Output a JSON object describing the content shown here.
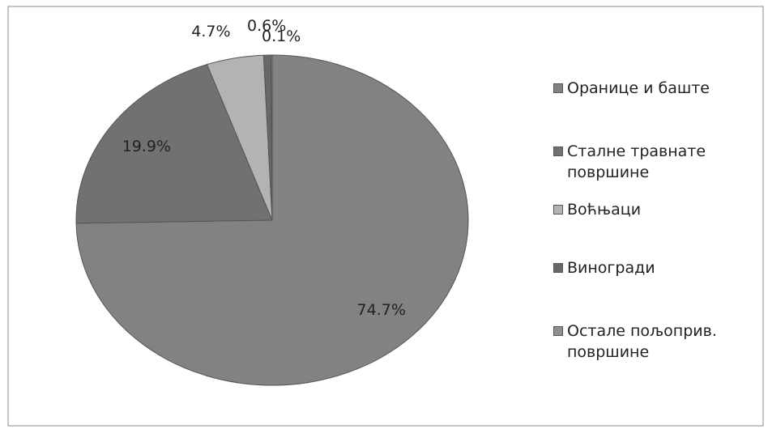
{
  "chart_data": {
    "type": "pie",
    "categories": [
      "Оранице и баште",
      "Сталне травнате површине",
      "Воћњаци",
      "Виногради",
      "Остале пољоприв. површине"
    ],
    "values": [
      74.7,
      19.9,
      4.7,
      0.6,
      0.1
    ],
    "value_labels": [
      "74.7%",
      "19.9%",
      "4.7%",
      "0.6%",
      "0.1%"
    ],
    "colors": [
      "#828282",
      "#717171",
      "#b3b3b3",
      "#686868",
      "#8e8e8e"
    ],
    "legend": "right"
  }
}
